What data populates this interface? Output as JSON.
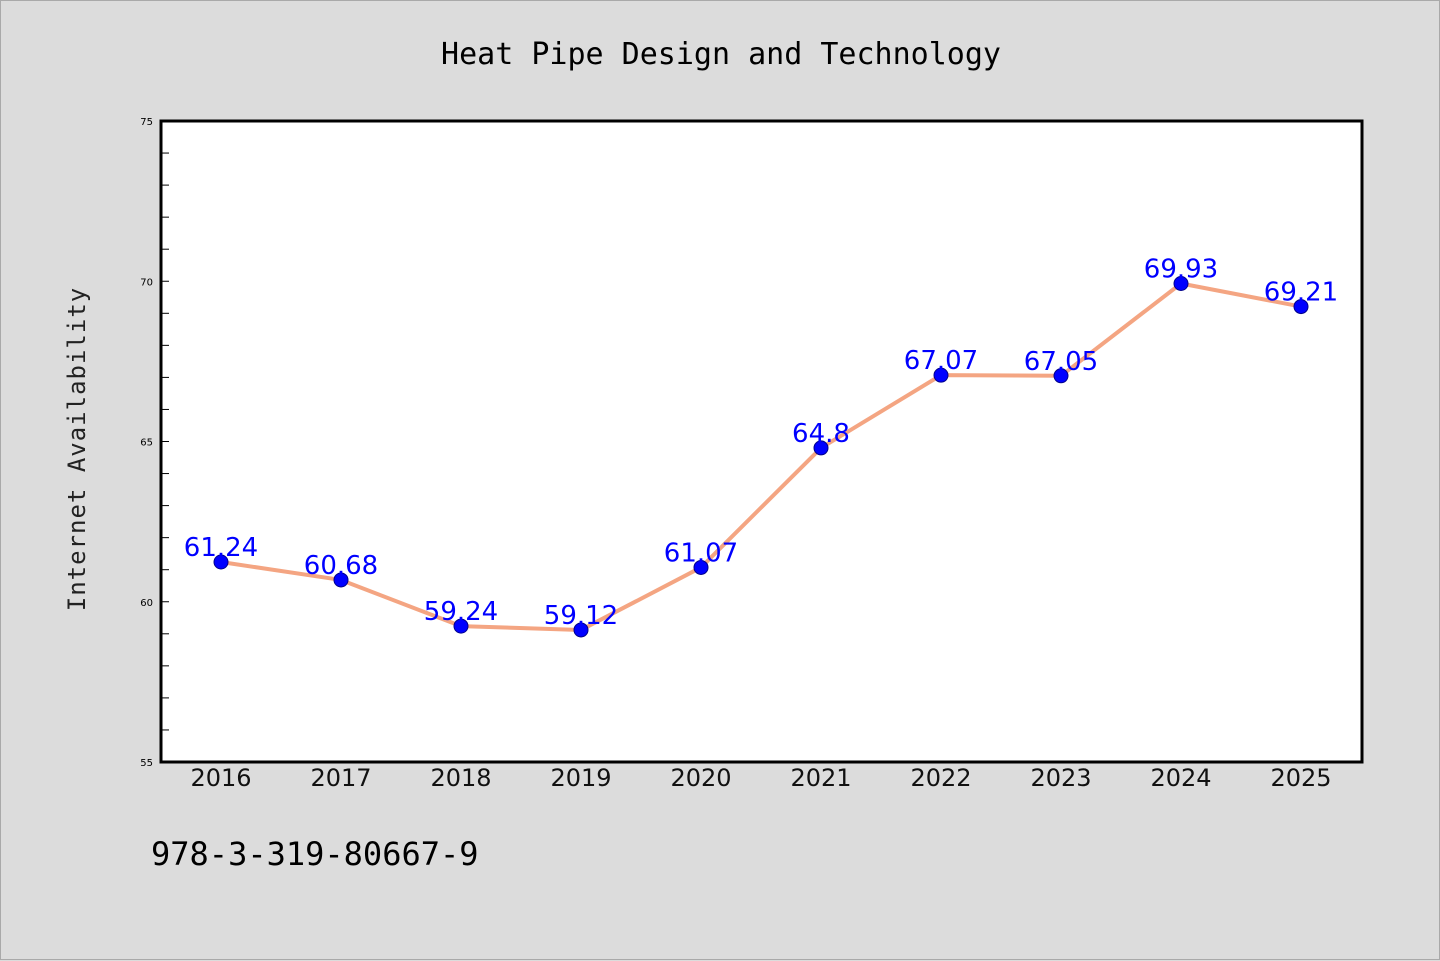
{
  "chart_data": {
    "type": "line",
    "title": "Heat Pipe Design and Technology",
    "xlabel": "",
    "ylabel": "Internet Availability",
    "categories": [
      "2016",
      "2017",
      "2018",
      "2019",
      "2020",
      "2021",
      "2022",
      "2023",
      "2024",
      "2025"
    ],
    "series": [
      {
        "values": [
          61.24,
          60.68,
          59.24,
          59.12,
          61.07,
          64.8,
          67.07,
          67.05,
          69.93,
          69.21
        ],
        "labels": [
          "61.24",
          "60.68",
          "59.24",
          "59.12",
          "61.07",
          "64.8",
          "67.07",
          "67.05",
          "69.93",
          "69.21"
        ]
      }
    ],
    "ylim": [
      55,
      75
    ],
    "yticks": [
      "55",
      "60",
      "65",
      "70",
      "75"
    ],
    "grid": false,
    "legend": "none"
  },
  "colors": {
    "background": "#dcdcdc",
    "plot_background": "#ffffff",
    "line": "#f4a582",
    "marker": "#0000ff",
    "data_label": "#0000ff"
  },
  "footer": {
    "isbn": "978-3-319-80667-9"
  }
}
